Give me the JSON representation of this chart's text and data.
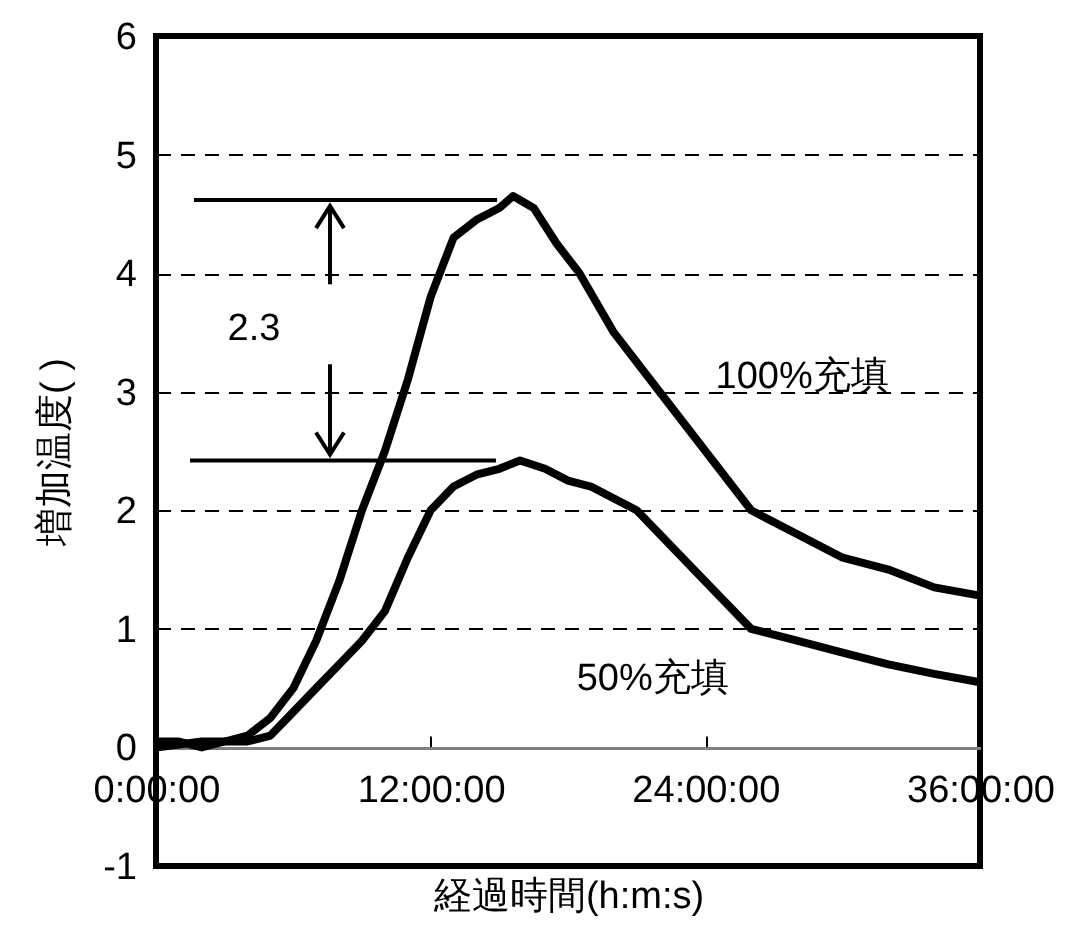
{
  "chart_data": {
    "type": "line",
    "xlabel": "経過時間(h:m:s)",
    "ylabel": "増加温度( )",
    "xlim": [
      0,
      36
    ],
    "xticks": [
      {
        "value": 0,
        "label": "0:00:00"
      },
      {
        "value": 12,
        "label": "12:00:00"
      },
      {
        "value": 24,
        "label": "24:00:00"
      },
      {
        "value": 36,
        "label": "36:00:00"
      }
    ],
    "ylim": [
      -1,
      6
    ],
    "yticks": [
      -1,
      0,
      1,
      2,
      3,
      4,
      5,
      6
    ],
    "grid": "y",
    "line_style": "solid",
    "marker": "none",
    "annotations": [
      "2.3"
    ],
    "series": [
      {
        "name": "100%充填",
        "color": "#000000",
        "x": [
          0,
          1,
          2,
          3,
          4,
          5,
          6,
          7,
          8,
          9,
          10,
          11,
          12,
          13,
          14,
          15,
          15.6,
          16.5,
          17.5,
          18.5,
          20,
          22,
          24,
          26,
          28,
          30,
          32,
          34,
          36
        ],
        "values": [
          0.05,
          0.05,
          0.0,
          0.05,
          0.1,
          0.25,
          0.5,
          0.9,
          1.4,
          2.0,
          2.5,
          3.1,
          3.8,
          4.3,
          4.45,
          4.55,
          4.65,
          4.55,
          4.25,
          4.0,
          3.5,
          3.0,
          2.5,
          2.0,
          1.8,
          1.6,
          1.5,
          1.35,
          1.28
        ]
      },
      {
        "name": "50%充填",
        "color": "#000000",
        "x": [
          0,
          2,
          4,
          5,
          6,
          7,
          8,
          9,
          10,
          11,
          12,
          13,
          14,
          15,
          15.9,
          17,
          18,
          19,
          21,
          23,
          24,
          26,
          28,
          30,
          32,
          34,
          36
        ],
        "values": [
          0.0,
          0.05,
          0.05,
          0.1,
          0.3,
          0.5,
          0.7,
          0.9,
          1.15,
          1.6,
          2.0,
          2.2,
          2.3,
          2.35,
          2.42,
          2.35,
          2.25,
          2.2,
          2.0,
          1.6,
          1.4,
          1.0,
          0.9,
          0.8,
          0.7,
          0.62,
          0.55
        ]
      }
    ]
  }
}
